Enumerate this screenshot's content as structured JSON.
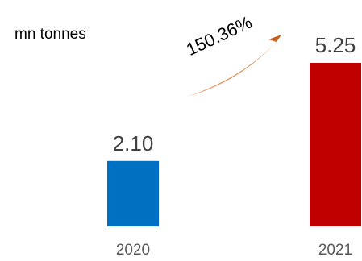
{
  "chart_data": {
    "type": "bar",
    "categories": [
      "2020",
      "2021"
    ],
    "values": [
      2.1,
      5.25
    ],
    "value_labels": [
      "2.10",
      "5.25"
    ],
    "unit": "mn tonnes",
    "growth_label": "150.36%",
    "bar_colors": [
      "#0070C0",
      "#C00000"
    ],
    "arrow_colors": [
      "#F4B183",
      "#C55A11"
    ],
    "ylim": [
      0,
      5.25
    ],
    "title": "",
    "xlabel": "",
    "ylabel": "",
    "grid": false,
    "legend": "none"
  }
}
